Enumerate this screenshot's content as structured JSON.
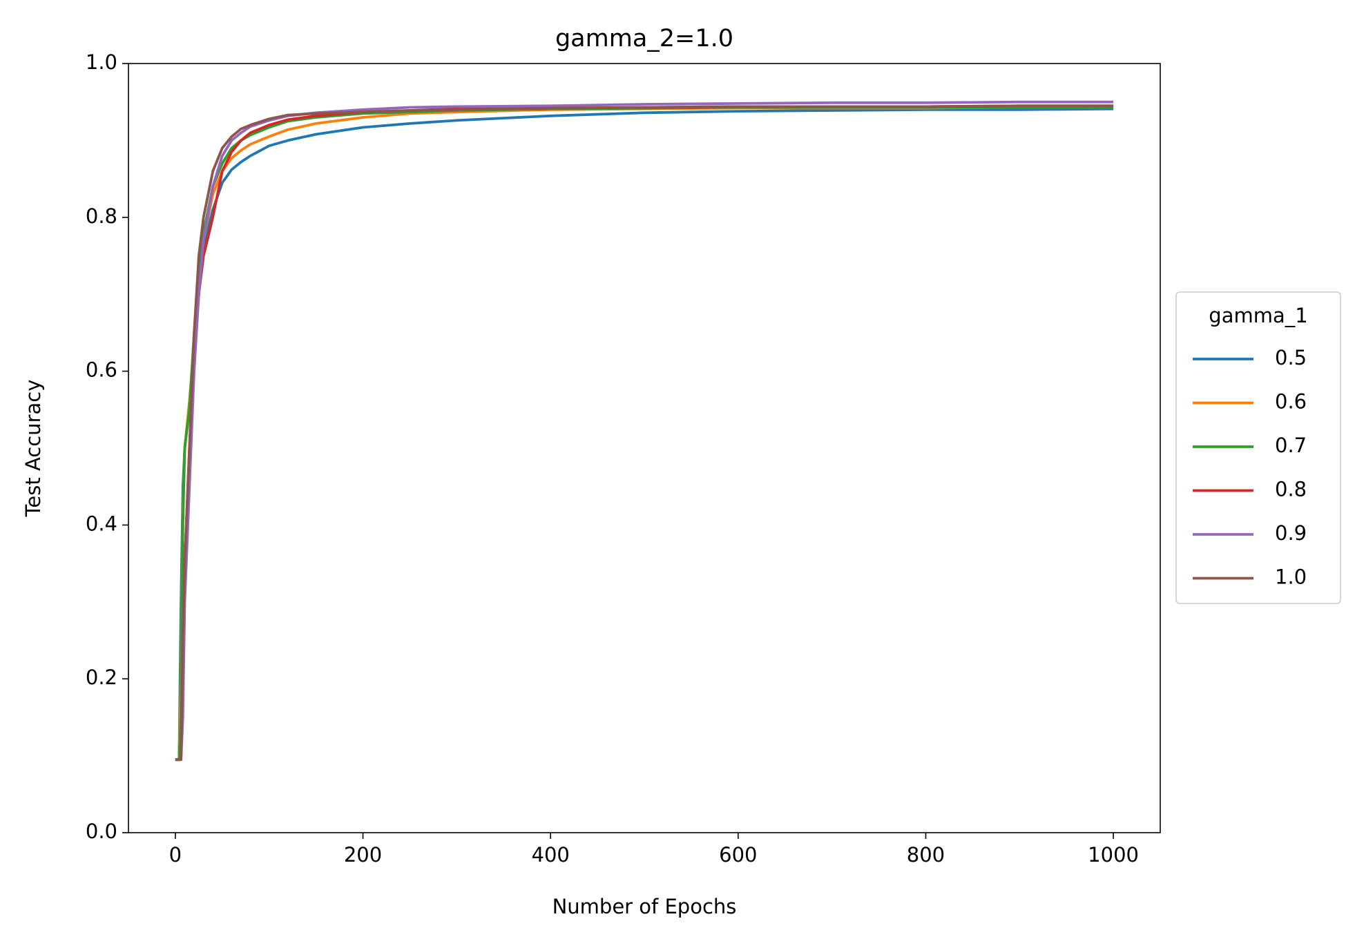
{
  "chart_data": {
    "type": "line",
    "title": "gamma_2=1.0",
    "xlabel": "Number of Epochs",
    "ylabel": "Test Accuracy",
    "x": [
      0,
      4,
      6,
      8,
      10,
      15,
      20,
      25,
      30,
      40,
      50,
      60,
      70,
      80,
      100,
      120,
      150,
      200,
      250,
      300,
      400,
      500,
      600,
      700,
      800,
      900,
      1000
    ],
    "series": [
      {
        "name": "0.5",
        "color": "#1f77b4",
        "values": [
          0.095,
          0.095,
          0.3,
          0.45,
          0.5,
          0.56,
          0.63,
          0.7,
          0.76,
          0.81,
          0.845,
          0.862,
          0.872,
          0.88,
          0.893,
          0.9,
          0.908,
          0.917,
          0.922,
          0.926,
          0.932,
          0.936,
          0.938,
          0.939,
          0.94,
          0.94,
          0.941
        ]
      },
      {
        "name": "0.6",
        "color": "#ff7f0e",
        "values": [
          0.095,
          0.095,
          0.2,
          0.42,
          0.5,
          0.56,
          0.64,
          0.71,
          0.77,
          0.83,
          0.86,
          0.877,
          0.887,
          0.895,
          0.905,
          0.914,
          0.922,
          0.93,
          0.935,
          0.937,
          0.94,
          0.941,
          0.942,
          0.942,
          0.942,
          0.943,
          0.943
        ]
      },
      {
        "name": "0.7",
        "color": "#2ca02c",
        "values": [
          0.095,
          0.095,
          0.15,
          0.4,
          0.5,
          0.55,
          0.65,
          0.72,
          0.78,
          0.84,
          0.87,
          0.89,
          0.9,
          0.907,
          0.917,
          0.925,
          0.93,
          0.935,
          0.937,
          0.939,
          0.941,
          0.942,
          0.943,
          0.943,
          0.943,
          0.943,
          0.943
        ]
      },
      {
        "name": "0.8",
        "color": "#d62728",
        "values": [
          0.095,
          0.095,
          0.095,
          0.2,
          0.35,
          0.5,
          0.62,
          0.7,
          0.75,
          0.8,
          0.86,
          0.885,
          0.9,
          0.91,
          0.92,
          0.927,
          0.932,
          0.937,
          0.939,
          0.941,
          0.942,
          0.943,
          0.944,
          0.944,
          0.944,
          0.945,
          0.945
        ]
      },
      {
        "name": "0.9",
        "color": "#9467bd",
        "values": [
          0.095,
          0.095,
          0.095,
          0.15,
          0.3,
          0.45,
          0.6,
          0.7,
          0.77,
          0.84,
          0.88,
          0.9,
          0.91,
          0.918,
          0.926,
          0.932,
          0.936,
          0.94,
          0.943,
          0.944,
          0.945,
          0.947,
          0.948,
          0.949,
          0.949,
          0.95,
          0.95
        ]
      },
      {
        "name": "1.0",
        "color": "#8c564b",
        "values": [
          0.095,
          0.095,
          0.095,
          0.25,
          0.35,
          0.5,
          0.65,
          0.75,
          0.8,
          0.86,
          0.89,
          0.905,
          0.915,
          0.92,
          0.928,
          0.933,
          0.935,
          0.937,
          0.939,
          0.94,
          0.942,
          0.943,
          0.944,
          0.944,
          0.944,
          0.945,
          0.945
        ]
      }
    ],
    "legend_title": "gamma_1",
    "legend_position": "right",
    "xlim": [
      -50,
      1050
    ],
    "xticks": [
      0,
      200,
      400,
      600,
      800,
      1000
    ],
    "ylim": [
      0,
      1
    ],
    "yticks": [
      {
        "value": 0,
        "label": "0.0"
      },
      0.2,
      0.4,
      0.6,
      0.8,
      {
        "value": 1,
        "label": "1.0"
      }
    ],
    "grid": false
  }
}
